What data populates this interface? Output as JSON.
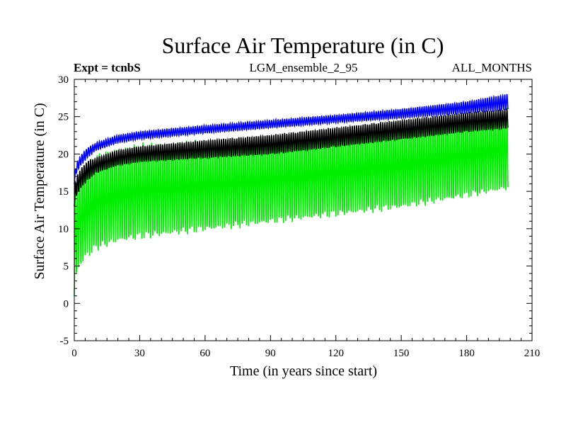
{
  "chart_data": {
    "type": "line",
    "title": "Surface Air Temperature (in C)",
    "subtitle_left": "Expt = tcnbS",
    "subtitle_center": "LGM_ensemble_2_95",
    "subtitle_right": "ALL_MONTHS",
    "xlabel": "Time (in years since start)",
    "ylabel": "Surface Air Temperature (in C)",
    "xlim": [
      0,
      210
    ],
    "ylim": [
      -5,
      30
    ],
    "xticks": [
      0,
      30,
      60,
      90,
      120,
      150,
      180,
      210
    ],
    "yticks": [
      -5,
      0,
      5,
      10,
      15,
      20,
      25,
      30
    ],
    "x_minor_step": 5,
    "y_minor_step": 1,
    "data_end_year": 199,
    "series": [
      {
        "name": "green",
        "color": "#00ee00",
        "anchors_year": [
          0,
          1,
          3,
          6,
          10,
          20,
          30,
          60,
          90,
          120,
          150,
          180,
          199
        ],
        "min": [
          1.0,
          4.0,
          5.5,
          6.5,
          7.5,
          8.5,
          9.0,
          10.0,
          11.0,
          12.0,
          13.0,
          14.5,
          15.5
        ],
        "max": [
          14.0,
          16.0,
          17.5,
          18.5,
          19.5,
          20.5,
          21.0,
          21.5,
          22.0,
          23.0,
          24.0,
          25.0,
          26.0
        ]
      },
      {
        "name": "black",
        "color": "#000000",
        "anchors_year": [
          0,
          1,
          3,
          6,
          10,
          20,
          30,
          60,
          90,
          120,
          150,
          180,
          199
        ],
        "min": [
          13.0,
          14.5,
          15.5,
          16.5,
          17.5,
          18.5,
          19.0,
          19.5,
          20.0,
          21.0,
          22.0,
          23.0,
          23.5
        ],
        "max": [
          15.5,
          17.0,
          18.0,
          19.0,
          19.5,
          20.5,
          21.0,
          21.8,
          22.5,
          23.5,
          24.5,
          25.5,
          26.0
        ]
      },
      {
        "name": "blue",
        "color": "#0000ff",
        "anchors_year": [
          0,
          1,
          3,
          6,
          10,
          20,
          30,
          60,
          90,
          120,
          150,
          180,
          199
        ],
        "min": [
          16.0,
          17.5,
          18.5,
          19.5,
          20.5,
          21.5,
          22.0,
          22.8,
          23.5,
          24.2,
          24.8,
          25.5,
          26.0
        ],
        "max": [
          17.0,
          18.8,
          19.8,
          20.8,
          21.5,
          22.5,
          23.0,
          23.8,
          24.5,
          25.2,
          26.0,
          27.0,
          28.0
        ]
      }
    ]
  }
}
